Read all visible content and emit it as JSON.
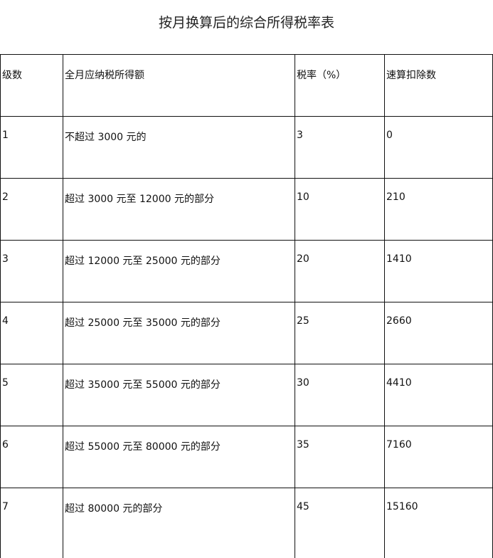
{
  "title": "按月换算后的综合所得税率表",
  "table": {
    "headers": [
      "级数",
      "全月应纳税所得额",
      "税率（%）",
      "速算扣除数"
    ],
    "rows": [
      [
        "1",
        "不超过 3000 元的",
        "3",
        "0"
      ],
      [
        "2",
        "超过 3000 元至 12000 元的部分",
        "10",
        "210"
      ],
      [
        "3",
        "超过 12000 元至 25000 元的部分",
        "20",
        "1410"
      ],
      [
        "4",
        "超过 25000 元至 35000 元的部分",
        "25",
        "2660"
      ],
      [
        "5",
        "超过 35000 元至 55000 元的部分",
        "30",
        "4410"
      ],
      [
        "6",
        "超过 55000 元至 80000 元的部分",
        "35",
        "7160"
      ],
      [
        "7",
        "超过 80000 元的部分",
        "45",
        "15160"
      ]
    ]
  }
}
